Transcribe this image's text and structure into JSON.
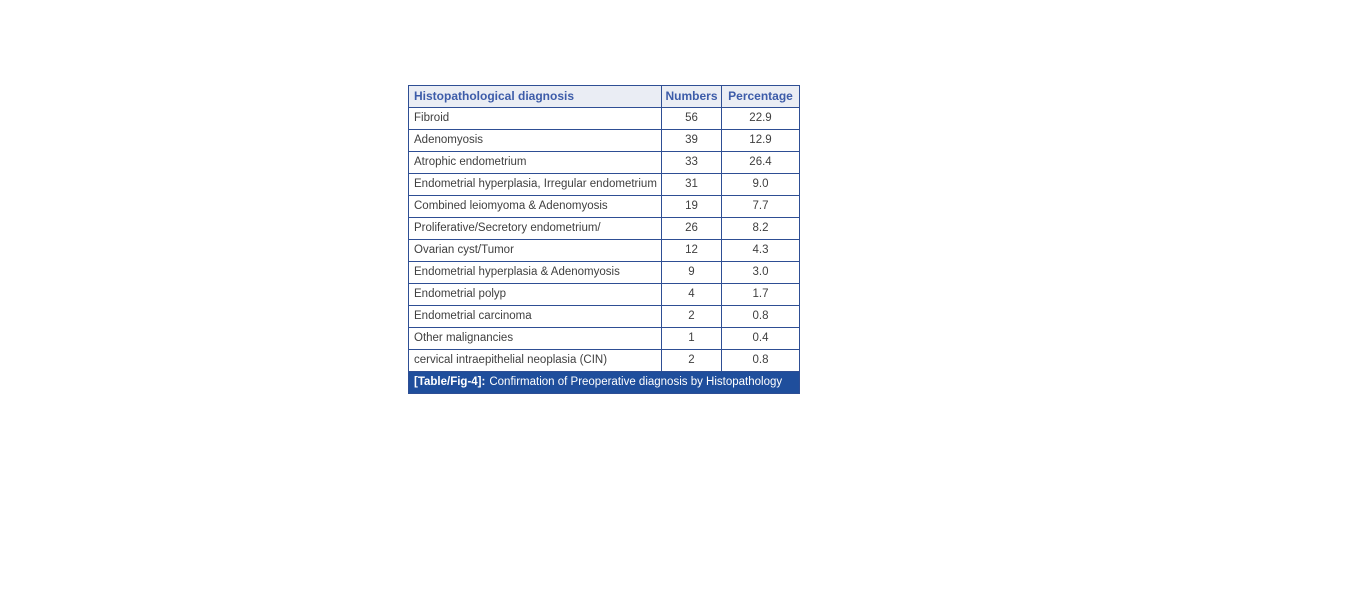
{
  "figure": {
    "caption_label": "[Table/Fig-4]:",
    "caption_text": "Confirmation of Preoperative diagnosis by Histopathology"
  },
  "table": {
    "columns": [
      "Histopathological diagnosis",
      "Numbers",
      "Percentage"
    ],
    "rows": [
      {
        "diagnosis": "Fibroid",
        "numbers": "56",
        "percentage": "22.9"
      },
      {
        "diagnosis": "Adenomyosis",
        "numbers": "39",
        "percentage": "12.9"
      },
      {
        "diagnosis": "Atrophic endometrium",
        "numbers": "33",
        "percentage": "26.4"
      },
      {
        "diagnosis": "Endometrial hyperplasia, Irregular endometrium",
        "numbers": "31",
        "percentage": "9.0"
      },
      {
        "diagnosis": "Combined leiomyoma & Adenomyosis",
        "numbers": "19",
        "percentage": "7.7"
      },
      {
        "diagnosis": "Proliferative/Secretory endometrium/",
        "numbers": "26",
        "percentage": "8.2"
      },
      {
        "diagnosis": "Ovarian cyst/Tumor",
        "numbers": "12",
        "percentage": "4.3"
      },
      {
        "diagnosis": "Endometrial hyperplasia & Adenomyosis",
        "numbers": "9",
        "percentage": "3.0"
      },
      {
        "diagnosis": "Endometrial polyp",
        "numbers": "4",
        "percentage": "1.7"
      },
      {
        "diagnosis": "Endometrial carcinoma",
        "numbers": "2",
        "percentage": "0.8"
      },
      {
        "diagnosis": "Other malignancies",
        "numbers": "1",
        "percentage": "0.4"
      },
      {
        "diagnosis": "cervical intraepithelial neoplasia (CIN)",
        "numbers": "2",
        "percentage": "0.8"
      }
    ]
  },
  "colors": {
    "border": "#2e4e94",
    "header_bg": "#eaedf4",
    "header_text": "#3d5ca9",
    "caption_bg": "#1f4e9c",
    "caption_text": "#ffffff",
    "body_text": "#3f3f3f",
    "page_bg": "#ffffff"
  },
  "chart_data": {
    "type": "table",
    "title": "[Table/Fig-4]: Confirmation of Preoperative diagnosis by Histopathology",
    "columns": [
      "Histopathological diagnosis",
      "Numbers",
      "Percentage"
    ],
    "rows": [
      [
        "Fibroid",
        56,
        22.9
      ],
      [
        "Adenomyosis",
        39,
        12.9
      ],
      [
        "Atrophic endometrium",
        33,
        26.4
      ],
      [
        "Endometrial hyperplasia, Irregular endometrium",
        31,
        9.0
      ],
      [
        "Combined leiomyoma & Adenomyosis",
        19,
        7.7
      ],
      [
        "Proliferative/Secretory endometrium/",
        26,
        8.2
      ],
      [
        "Ovarian cyst/Tumor",
        12,
        4.3
      ],
      [
        "Endometrial hyperplasia & Adenomyosis",
        9,
        3.0
      ],
      [
        "Endometrial polyp",
        4,
        1.7
      ],
      [
        "Endometrial carcinoma",
        2,
        0.8
      ],
      [
        "Other malignancies",
        1,
        0.4
      ],
      [
        "cervical intraepithelial neoplasia (CIN)",
        2,
        0.8
      ]
    ]
  }
}
